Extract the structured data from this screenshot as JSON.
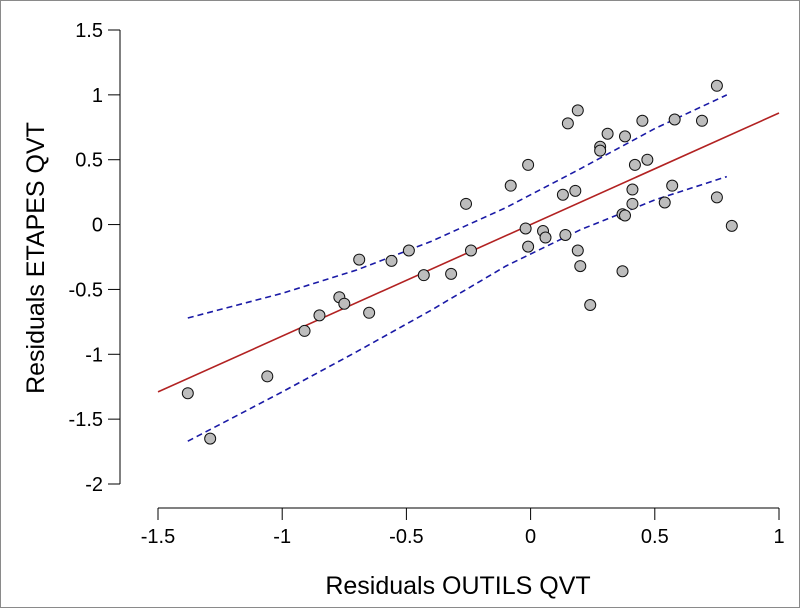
{
  "chart_data": {
    "type": "scatter",
    "xlabel": "Residuals OUTILS QVT",
    "ylabel": "Residuals ETAPES QVT",
    "xlim": [
      -1.5,
      1
    ],
    "ylim": [
      -2,
      1.5
    ],
    "xticks": [
      -1.5,
      -1,
      -0.5,
      0,
      0.5,
      1
    ],
    "yticks": [
      -2,
      -1.5,
      -1,
      -0.5,
      0,
      0.5,
      1,
      1.5
    ],
    "xtick_labels": [
      "-1.5",
      "-1",
      "-0.5",
      "0",
      "0.5",
      "1"
    ],
    "ytick_labels": [
      "-2",
      "-1.5",
      "-1",
      "-0.5",
      "0",
      "0.5",
      "1",
      "1.5"
    ],
    "grid": false,
    "colors": {
      "point_fill": "#bdbdbd",
      "point_stroke": "#111111",
      "fit_line": "#b22222",
      "confidence_band": "#1a1aa6"
    },
    "points": [
      {
        "x": -1.38,
        "y": -1.3
      },
      {
        "x": -1.29,
        "y": -1.65
      },
      {
        "x": -1.06,
        "y": -1.17
      },
      {
        "x": -0.91,
        "y": -0.82
      },
      {
        "x": -0.85,
        "y": -0.7
      },
      {
        "x": -0.77,
        "y": -0.56
      },
      {
        "x": -0.75,
        "y": -0.61
      },
      {
        "x": -0.69,
        "y": -0.27
      },
      {
        "x": -0.65,
        "y": -0.68
      },
      {
        "x": -0.56,
        "y": -0.28
      },
      {
        "x": -0.49,
        "y": -0.2
      },
      {
        "x": -0.43,
        "y": -0.39
      },
      {
        "x": -0.32,
        "y": -0.38
      },
      {
        "x": -0.26,
        "y": 0.16
      },
      {
        "x": -0.24,
        "y": -0.2
      },
      {
        "x": -0.08,
        "y": 0.3
      },
      {
        "x": -0.02,
        "y": -0.03
      },
      {
        "x": -0.01,
        "y": 0.46
      },
      {
        "x": -0.01,
        "y": -0.17
      },
      {
        "x": 0.05,
        "y": -0.05
      },
      {
        "x": 0.06,
        "y": -0.1
      },
      {
        "x": 0.13,
        "y": 0.23
      },
      {
        "x": 0.14,
        "y": -0.08
      },
      {
        "x": 0.15,
        "y": 0.78
      },
      {
        "x": 0.18,
        "y": 0.26
      },
      {
        "x": 0.19,
        "y": 0.88
      },
      {
        "x": 0.19,
        "y": -0.2
      },
      {
        "x": 0.2,
        "y": -0.32
      },
      {
        "x": 0.24,
        "y": -0.62
      },
      {
        "x": 0.28,
        "y": 0.6
      },
      {
        "x": 0.28,
        "y": 0.57
      },
      {
        "x": 0.31,
        "y": 0.7
      },
      {
        "x": 0.37,
        "y": 0.08
      },
      {
        "x": 0.37,
        "y": -0.36
      },
      {
        "x": 0.38,
        "y": 0.68
      },
      {
        "x": 0.38,
        "y": 0.07
      },
      {
        "x": 0.41,
        "y": 0.27
      },
      {
        "x": 0.41,
        "y": 0.16
      },
      {
        "x": 0.42,
        "y": 0.46
      },
      {
        "x": 0.45,
        "y": 0.8
      },
      {
        "x": 0.47,
        "y": 0.5
      },
      {
        "x": 0.54,
        "y": 0.17
      },
      {
        "x": 0.57,
        "y": 0.3
      },
      {
        "x": 0.58,
        "y": 0.81
      },
      {
        "x": 0.69,
        "y": 0.8
      },
      {
        "x": 0.75,
        "y": 1.07
      },
      {
        "x": 0.75,
        "y": 0.21
      },
      {
        "x": 0.81,
        "y": -0.01
      }
    ],
    "fit_line": {
      "x": [
        -1.5,
        1
      ],
      "y": [
        -1.29,
        0.86
      ]
    },
    "confidence_upper": [
      {
        "x": -1.38,
        "y": -0.72
      },
      {
        "x": -1.0,
        "y": -0.53
      },
      {
        "x": -0.7,
        "y": -0.35
      },
      {
        "x": -0.4,
        "y": -0.13
      },
      {
        "x": -0.1,
        "y": 0.13
      },
      {
        "x": 0.2,
        "y": 0.43
      },
      {
        "x": 0.5,
        "y": 0.74
      },
      {
        "x": 0.79,
        "y": 1.0
      }
    ],
    "confidence_lower": [
      {
        "x": -1.38,
        "y": -1.67
      },
      {
        "x": -1.0,
        "y": -1.29
      },
      {
        "x": -0.7,
        "y": -0.98
      },
      {
        "x": -0.4,
        "y": -0.66
      },
      {
        "x": -0.1,
        "y": -0.32
      },
      {
        "x": 0.2,
        "y": -0.04
      },
      {
        "x": 0.5,
        "y": 0.19
      },
      {
        "x": 0.79,
        "y": 0.37
      }
    ]
  }
}
